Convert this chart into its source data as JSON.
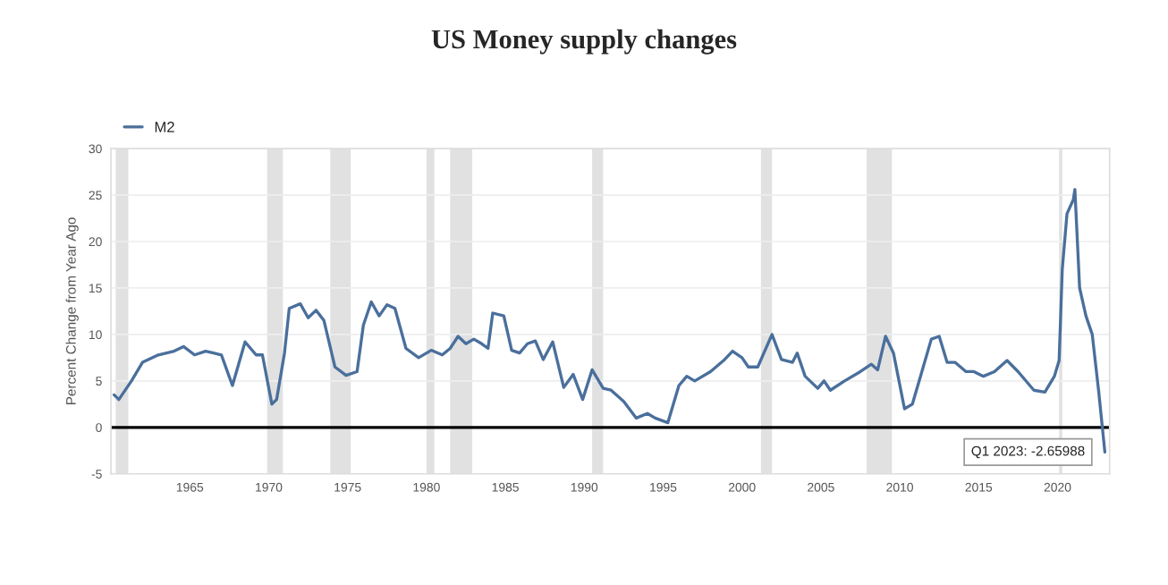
{
  "chart_data": {
    "type": "line",
    "title": "US Money supply changes",
    "ylabel": "Percent Change from Year Ago",
    "series": [
      {
        "name": "M2",
        "color": "#4a6f9c",
        "x": [
          1960.2,
          1960.5,
          1961.3,
          1962,
          1963,
          1964,
          1964.6,
          1965.3,
          1966,
          1966.5,
          1967,
          1967.7,
          1968.5,
          1969.2,
          1969.6,
          1970.2,
          1970.5,
          1971,
          1971.3,
          1972,
          1972.5,
          1973,
          1973.5,
          1974.2,
          1974.9,
          1975.6,
          1976,
          1976.5,
          1977,
          1977.5,
          1978,
          1978.7,
          1979.5,
          1980.3,
          1981,
          1981.5,
          1982,
          1982.5,
          1983,
          1983.5,
          1983.9,
          1984.2,
          1984.9,
          1985.4,
          1985.9,
          1986.4,
          1986.9,
          1987.4,
          1988,
          1988.7,
          1989.3,
          1989.9,
          1990.5,
          1991.2,
          1991.7,
          1992.5,
          1993.3,
          1994,
          1994.5,
          1995.3,
          1996,
          1996.5,
          1997,
          1998,
          1998.9,
          1999.4,
          2000,
          2000.4,
          2001,
          2001.9,
          2002.5,
          2003.2,
          2003.5,
          2004,
          2004.8,
          2005.2,
          2005.6,
          2006.5,
          2007.5,
          2008.2,
          2008.6,
          2009.1,
          2009.6,
          2010.3,
          2010.8,
          2011.4,
          2012,
          2012.5,
          2013,
          2013.5,
          2014.2,
          2014.7,
          2015.3,
          2016,
          2016.8,
          2017.5,
          2018.5,
          2019.2,
          2019.8,
          2020.1,
          2020.3,
          2020.6,
          2021,
          2021.1,
          2021.4,
          2021.8,
          2022.2,
          2022.6,
          2023
        ],
        "values": [
          3.5,
          3.0,
          5,
          7,
          7.8,
          8.2,
          8.7,
          7.8,
          8.2,
          8.0,
          7.8,
          4.5,
          9.2,
          7.8,
          7.8,
          2.5,
          3,
          8,
          12.8,
          13.3,
          11.8,
          12.6,
          11.5,
          6.5,
          5.6,
          6,
          11,
          13.5,
          12,
          13.2,
          12.8,
          8.5,
          7.5,
          8.3,
          7.8,
          8.5,
          9.8,
          9.0,
          9.5,
          9.0,
          8.5,
          12.3,
          12.0,
          8.3,
          8.0,
          9.0,
          9.3,
          7.3,
          9.2,
          4.3,
          5.7,
          3.0,
          6.2,
          4.2,
          4.0,
          2.8,
          1.0,
          1.5,
          1.0,
          0.5,
          4.5,
          5.5,
          5.0,
          6.0,
          7.3,
          8.2,
          7.5,
          6.5,
          6.5,
          10.0,
          7.3,
          7.0,
          8.0,
          5.5,
          4.2,
          5.0,
          4.0,
          5.0,
          6.0,
          6.8,
          6.2,
          9.8,
          8.0,
          2.0,
          2.5,
          6.0,
          9.5,
          9.8,
          7.0,
          7.0,
          6.0,
          6.0,
          5.5,
          6.0,
          7.2,
          6.0,
          4.0,
          3.8,
          5.5,
          7.2,
          17,
          23,
          24.5,
          25.6,
          15,
          12,
          10,
          4,
          -2.65988
        ]
      }
    ],
    "xlim": [
      1960,
      2023.3
    ],
    "ylim": [
      -5,
      30
    ],
    "xticks": [
      1965,
      1970,
      1975,
      1980,
      1985,
      1990,
      1995,
      2000,
      2005,
      2010,
      2015,
      2020
    ],
    "yticks": [
      -5,
      0,
      5,
      10,
      15,
      20,
      25,
      30
    ],
    "grid": "y",
    "legend": "top left",
    "marker": "none",
    "line_style": "solid",
    "bands": [
      {
        "axis": "x",
        "from": 1960.3,
        "to": 1961.1,
        "color": "#e1e1e1"
      },
      {
        "axis": "x",
        "from": 1969.9,
        "to": 1970.9,
        "color": "#e1e1e1"
      },
      {
        "axis": "x",
        "from": 1973.9,
        "to": 1975.2,
        "color": "#e1e1e1"
      },
      {
        "axis": "x",
        "from": 1980.0,
        "to": 1980.5,
        "color": "#e1e1e1"
      },
      {
        "axis": "x",
        "from": 1981.5,
        "to": 1982.9,
        "color": "#e1e1e1"
      },
      {
        "axis": "x",
        "from": 1990.5,
        "to": 1991.2,
        "color": "#e1e1e1"
      },
      {
        "axis": "x",
        "from": 2001.2,
        "to": 2001.9,
        "color": "#e1e1e1"
      },
      {
        "axis": "x",
        "from": 2007.9,
        "to": 2009.5,
        "color": "#e1e1e1"
      },
      {
        "axis": "x",
        "from": 2020.1,
        "to": 2020.3,
        "color": "#e1e1e1"
      }
    ],
    "ref_lines": [
      {
        "axis": "y",
        "value": 0,
        "color": "#000000",
        "line_style": "solid"
      }
    ],
    "annotations": [
      {
        "text": "Q1 2023: -2.65988",
        "x": 2023,
        "y": -2.65988
      }
    ]
  }
}
